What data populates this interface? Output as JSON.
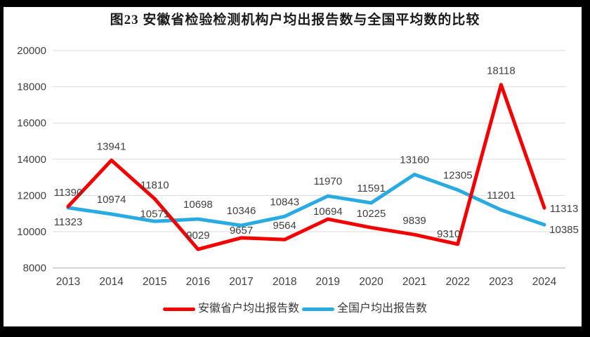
{
  "title": "图23 安徽省检验检测机构户均出报告数与全国平均数的比较",
  "chart_data": {
    "type": "line",
    "title": "图23 安徽省检验检测机构户均出报告数与全国平均数的比较",
    "categories": [
      "2013",
      "2014",
      "2015",
      "2016",
      "2017",
      "2018",
      "2019",
      "2020",
      "2021",
      "2022",
      "2023",
      "2024"
    ],
    "series": [
      {
        "name": "安徽省户均出报告数",
        "color": "#f40000",
        "values": [
          11390,
          13941,
          11810,
          9029,
          9657,
          9564,
          10694,
          10225,
          9839,
          9310,
          18118,
          11313
        ]
      },
      {
        "name": "全国户均出报告数",
        "color": "#29abe2",
        "values": [
          11323,
          10974,
          10571,
          10698,
          10346,
          10843,
          11970,
          11591,
          13160,
          12305,
          11201,
          10385
        ]
      }
    ],
    "ylim": [
      8000,
      20000
    ],
    "y_ticks": [
      8000,
      10000,
      12000,
      14000,
      16000,
      18000,
      20000
    ],
    "grid": true,
    "data_labels": true,
    "legend_position": "bottom"
  },
  "colors": {
    "grid": "#d9d9d9",
    "axis_line": "#c4c4c4",
    "axis_text": "#404040",
    "label_text": "#404040",
    "frame": "#000000",
    "background": "#ffffff"
  }
}
